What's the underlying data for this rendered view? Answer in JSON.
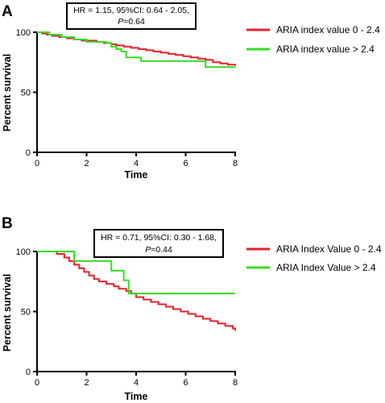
{
  "colors": {
    "red": "#e8202a",
    "green": "#33dd22"
  },
  "chart_data": [
    {
      "panel": "A",
      "type": "line",
      "xlabel": "Time",
      "ylabel": "Percent survival",
      "xlim": [
        0,
        8
      ],
      "ylim": [
        0,
        100
      ],
      "xticks": [
        "0",
        "2",
        "4",
        "6",
        "8"
      ],
      "yticks": [
        "0",
        "50",
        "100"
      ],
      "annotation": {
        "line1": "HR = 1.15, 95%CI: 0.64 - 2.05,",
        "p_label": "P",
        "p_value": "=0.64"
      },
      "legend_position": "top-right",
      "series": [
        {
          "name": "ARIA index value 0 - 2.4",
          "color": "#e8202a",
          "x": [
            0,
            0.2,
            0.4,
            0.6,
            0.9,
            1.2,
            1.5,
            1.8,
            2.1,
            2.4,
            2.7,
            3.0,
            3.2,
            3.5,
            3.8,
            4.1,
            4.4,
            4.7,
            5.0,
            5.3,
            5.6,
            5.9,
            6.2,
            6.5,
            6.8,
            7.1,
            7.4,
            7.7,
            8.0
          ],
          "y": [
            100,
            99,
            98,
            97,
            96,
            95,
            94,
            93,
            93,
            92,
            91,
            90,
            89,
            88,
            87,
            86,
            85,
            84,
            83,
            82,
            81,
            80,
            79,
            78,
            77,
            75,
            74,
            73,
            72
          ]
        },
        {
          "name": "ARIA index value > 2.4",
          "color": "#33dd22",
          "x": [
            0,
            0.5,
            1.0,
            1.5,
            2.0,
            2.5,
            2.8,
            3.0,
            3.2,
            3.4,
            3.6,
            4.2,
            5.0,
            6.0,
            6.8,
            8.0
          ],
          "y": [
            100,
            98,
            96,
            94,
            92,
            92,
            91,
            88,
            86,
            84,
            79,
            76,
            76,
            76,
            71,
            71
          ]
        }
      ]
    },
    {
      "panel": "B",
      "type": "line",
      "xlabel": "Time",
      "ylabel": "Percent survival",
      "xlim": [
        0,
        8
      ],
      "ylim": [
        0,
        100
      ],
      "xticks": [
        "0",
        "2",
        "4",
        "6",
        "8"
      ],
      "yticks": [
        "0",
        "50",
        "100"
      ],
      "annotation": {
        "line1": "HR = 0.71, 95%CI: 0.30 - 1.68,",
        "p_label": "P",
        "p_value": "=0.44"
      },
      "legend_position": "top-right",
      "series": [
        {
          "name": "ARIA Index Value 0 - 2.4",
          "color": "#e8202a",
          "x": [
            0,
            0.8,
            1.1,
            1.3,
            1.5,
            1.7,
            1.9,
            2.1,
            2.3,
            2.5,
            2.8,
            3.1,
            3.3,
            3.6,
            3.8,
            4.0,
            4.3,
            4.6,
            4.9,
            5.2,
            5.5,
            5.8,
            6.1,
            6.4,
            6.7,
            7.0,
            7.3,
            7.6,
            7.9,
            8.0
          ],
          "y": [
            100,
            98,
            95,
            92,
            89,
            86,
            83,
            80,
            77,
            75,
            73,
            71,
            69,
            67,
            65,
            62,
            60,
            58,
            56,
            54,
            52,
            50,
            48,
            46,
            44,
            42,
            40,
            38,
            36,
            34
          ]
        },
        {
          "name": "ARIA Index Value > 2.4",
          "color": "#33dd22",
          "x": [
            0,
            1.5,
            3.0,
            3.5,
            3.7,
            8.0
          ],
          "y": [
            100,
            92,
            84,
            76,
            65,
            65
          ]
        }
      ]
    }
  ]
}
